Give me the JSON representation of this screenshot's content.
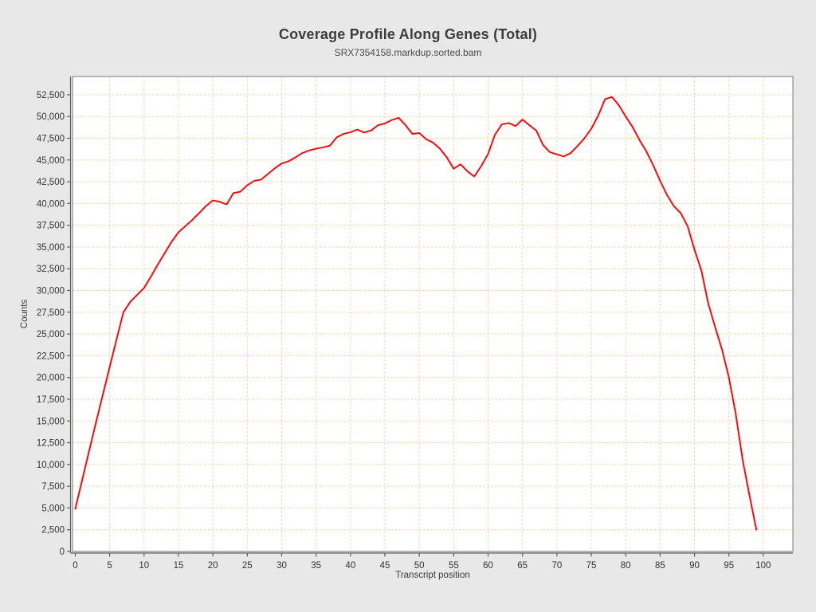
{
  "title": "Coverage Profile Along Genes (Total)",
  "subtitle": "SRX7354158.markdup.sorted.bam",
  "colors": {
    "page_background": "#e8e8e8",
    "plot_background": "#ffffff",
    "gridline": "#f9cda4",
    "plot_border": "#8f8f8f",
    "axis_line": "#5f5f5f",
    "tick_text": "#333333",
    "line": "#fe0000"
  },
  "chart_data": {
    "type": "line",
    "title": "Coverage Profile Along Genes (Total)",
    "subtitle": "SRX7354158.markdup.sorted.bam",
    "xlabel": "Transcript position",
    "ylabel": "Counts",
    "x_range": [
      -0.4,
      104.3
    ],
    "y_range": [
      0,
      54600
    ],
    "x_ticks": [
      0,
      5,
      10,
      15,
      20,
      25,
      30,
      35,
      40,
      45,
      50,
      55,
      60,
      65,
      70,
      75,
      80,
      85,
      90,
      95,
      100
    ],
    "y_tick_step": 2500,
    "y_tick_max": 52500,
    "grid": true,
    "grid_style": "dashed",
    "legend": "none",
    "series": [
      {
        "name": "Total coverage",
        "x_start": 0,
        "x_step": 1,
        "n_points": 100,
        "values": [
          4900,
          8200,
          11500,
          14800,
          18000,
          21200,
          24400,
          27500,
          28700,
          29500,
          30300,
          31600,
          33000,
          34300,
          35600,
          36700,
          37400,
          38100,
          38900,
          39700,
          40350,
          40200,
          39900,
          41200,
          41350,
          42100,
          42600,
          42750,
          43400,
          44050,
          44600,
          44850,
          45300,
          45800,
          46100,
          46300,
          46450,
          46650,
          47600,
          48000,
          48200,
          48500,
          48150,
          48400,
          49000,
          49200,
          49600,
          49850,
          49000,
          48000,
          48100,
          47400,
          47000,
          46300,
          45300,
          44000,
          44500,
          43700,
          43100,
          44300,
          45700,
          47900,
          49100,
          49250,
          48900,
          49650,
          49000,
          48400,
          46700,
          45900,
          45650,
          45400,
          45800,
          46600,
          47500,
          48600,
          50100,
          52000,
          52250,
          51300,
          50000,
          48800,
          47300,
          46000,
          44400,
          42600,
          41000,
          39700,
          38900,
          37400,
          34700,
          32300,
          28500,
          25800,
          23200,
          20000,
          15800,
          10500,
          6400,
          2500
        ]
      }
    ]
  }
}
